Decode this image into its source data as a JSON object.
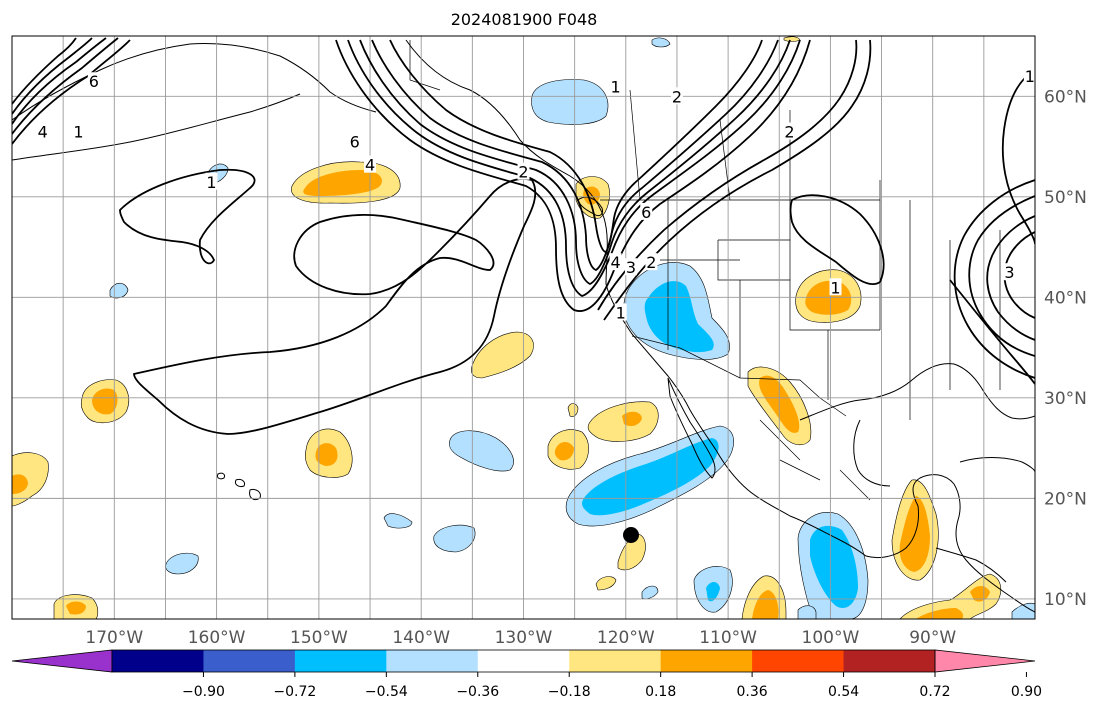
{
  "title": "2024081900 F048",
  "colors": {
    "pos_light": "#ffe680",
    "pos_mid": "#ffa500",
    "neg_light": "#b3e0ff",
    "neg_mid": "#00bfff",
    "contour": "#000000",
    "grid": "#9a9a9a",
    "land_line": "#000000",
    "tick_text": "#555555"
  },
  "axes": {
    "lon_ticks": [
      {
        "value": -170,
        "label": "170°W"
      },
      {
        "value": -160,
        "label": "160°W"
      },
      {
        "value": -150,
        "label": "150°W"
      },
      {
        "value": -140,
        "label": "140°W"
      },
      {
        "value": -130,
        "label": "130°W"
      },
      {
        "value": -120,
        "label": "120°W"
      },
      {
        "value": -110,
        "label": "110°W"
      },
      {
        "value": -100,
        "label": "100°W"
      },
      {
        "value": -90,
        "label": "90°W"
      }
    ],
    "lat_ticks": [
      {
        "value": 10,
        "label": "10°N"
      },
      {
        "value": 20,
        "label": "20°N"
      },
      {
        "value": 30,
        "label": "30°N"
      },
      {
        "value": 40,
        "label": "40°N"
      },
      {
        "value": 50,
        "label": "50°N"
      },
      {
        "value": 60,
        "label": "60°N"
      }
    ],
    "lon_range": [
      -180,
      -80
    ],
    "lat_range": [
      8,
      66
    ]
  },
  "colorbar": {
    "colors": [
      "#9932cc",
      "#00008b",
      "#3a5fcd",
      "#00bfff",
      "#b3e0ff",
      "#ffffff",
      "#ffe680",
      "#ffa500",
      "#ff4500",
      "#b22222",
      "#ff88aa"
    ],
    "ticks": [
      "−0.90",
      "−0.72",
      "−0.54",
      "−0.36",
      "−0.18",
      "0.18",
      "0.36",
      "0.54",
      "0.72",
      "0.90"
    ]
  },
  "contour_labels": [
    {
      "text": "6",
      "lon": -172.0,
      "lat": 61.5
    },
    {
      "text": "4",
      "lon": -177.0,
      "lat": 56.5
    },
    {
      "text": "1",
      "lon": -173.5,
      "lat": 56.5
    },
    {
      "text": "1",
      "lon": -160.5,
      "lat": 51.5
    },
    {
      "text": "6",
      "lon": -146.5,
      "lat": 55.5
    },
    {
      "text": "4",
      "lon": -145.0,
      "lat": 53.2
    },
    {
      "text": "2",
      "lon": -130.0,
      "lat": 52.5
    },
    {
      "text": "1",
      "lon": -121.0,
      "lat": 61.0
    },
    {
      "text": "2",
      "lon": -115.0,
      "lat": 60.0
    },
    {
      "text": "2",
      "lon": -104.0,
      "lat": 56.5
    },
    {
      "text": "6",
      "lon": -118.0,
      "lat": 48.5
    },
    {
      "text": "4",
      "lon": -121.0,
      "lat": 43.5
    },
    {
      "text": "3",
      "lon": -119.5,
      "lat": 43.0
    },
    {
      "text": "2",
      "lon": -117.5,
      "lat": 43.5
    },
    {
      "text": "1",
      "lon": -120.5,
      "lat": 38.5
    },
    {
      "text": "1",
      "lon": -99.5,
      "lat": 41.0
    },
    {
      "text": "1",
      "lon": -80.5,
      "lat": 62.0
    },
    {
      "text": "3",
      "lon": -82.5,
      "lat": 42.5
    }
  ]
}
